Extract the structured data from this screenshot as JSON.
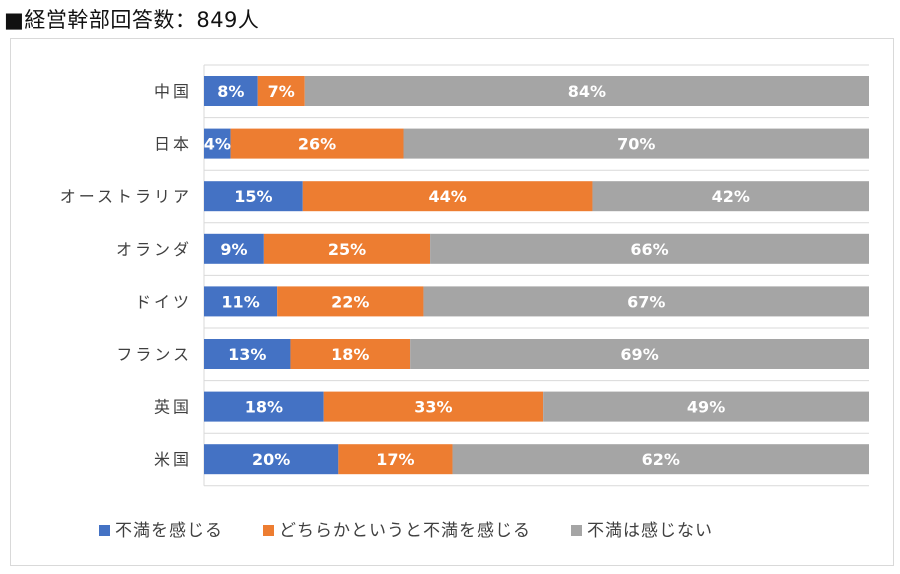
{
  "header": {
    "title": "■経営幹部回答数：849人"
  },
  "chart_data": {
    "type": "bar",
    "orientation": "horizontal",
    "stacked": "percent",
    "categories": [
      "中国",
      "日本",
      "オーストラリア",
      "オランダ",
      "ドイツ",
      "フランス",
      "英国",
      "米国"
    ],
    "series": [
      {
        "name": "不満を感じる",
        "color": "#4472c4",
        "values": [
          8,
          4,
          15,
          9,
          11,
          13,
          18,
          20
        ]
      },
      {
        "name": "どちらかというと不満を感じる",
        "color": "#ed7d31",
        "values": [
          7,
          26,
          44,
          25,
          22,
          18,
          33,
          17
        ]
      },
      {
        "name": "不満は感じない",
        "color": "#a5a5a5",
        "values": [
          84,
          70,
          42,
          66,
          67,
          69,
          49,
          62
        ]
      }
    ],
    "value_suffix": "%",
    "xlim": [
      0,
      100
    ],
    "grid": true,
    "legend": "bottom"
  }
}
